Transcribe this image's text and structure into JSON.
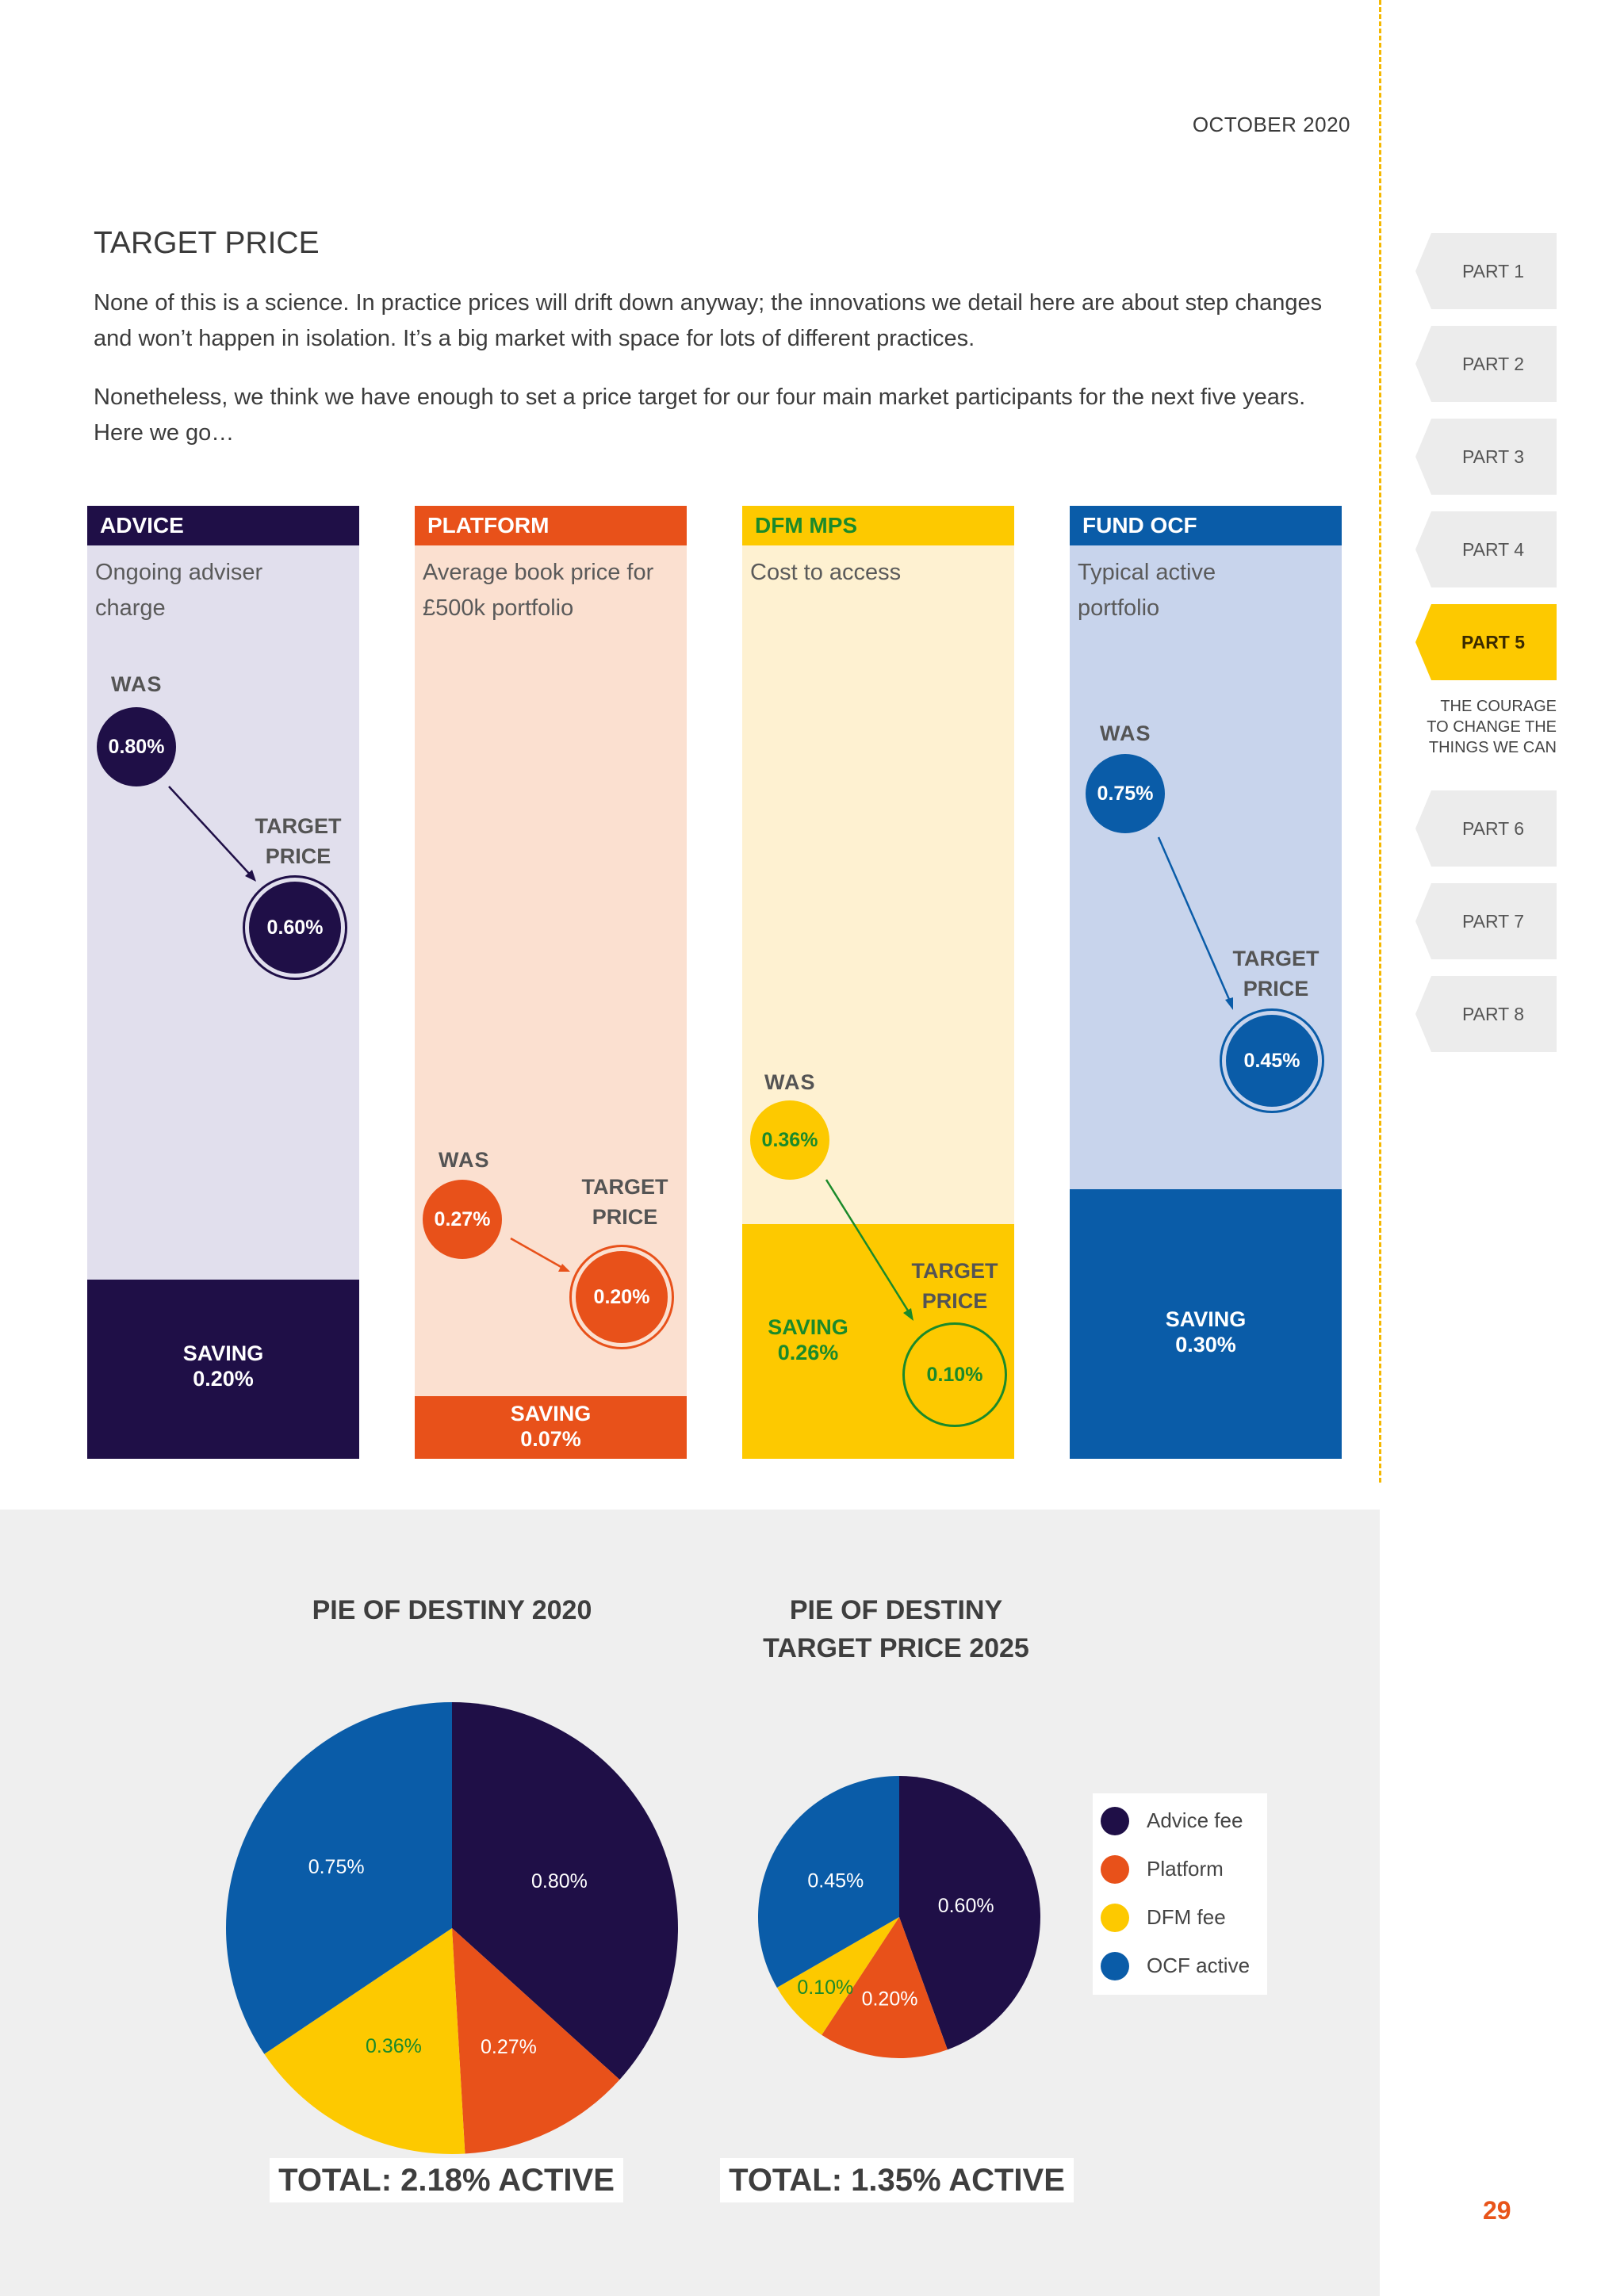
{
  "header": {
    "date": "OCTOBER 2020"
  },
  "title": "TARGET PRICE",
  "paragraphs": [
    "None of this is a science. In practice prices will drift down anyway; the innovations we detail here are about step changes and won’t happen in isolation. It’s a big market with space for lots of different practices.",
    "Nonetheless, we think we have enough to set a price target for our four main market participants for the next five years. Here we go…"
  ],
  "nav": {
    "items": [
      "PART 1",
      "PART 2",
      "PART 3",
      "PART 4",
      "PART 5",
      "PART 6",
      "PART 7",
      "PART 8"
    ],
    "active": "PART 5",
    "active_subtitle": "THE COURAGE\nTO CHANGE THE\nTHINGS WE CAN"
  },
  "columns": [
    {
      "heading": "ADVICE",
      "description": "Ongoing adviser charge",
      "was_label": "WAS",
      "was": "0.80%",
      "target_label": "TARGET PRICE",
      "target": "0.60%",
      "saving_label": "SAVING",
      "saving": "0.20%"
    },
    {
      "heading": "PLATFORM",
      "description": "Average book price for £500k portfolio",
      "was_label": "WAS",
      "was": "0.27%",
      "target_label": "TARGET PRICE",
      "target": "0.20%",
      "saving_label": "SAVING",
      "saving": "0.07%"
    },
    {
      "heading": "DFM MPS",
      "description": "Cost to access",
      "was_label": "WAS",
      "was": "0.36%",
      "target_label": "TARGET PRICE",
      "target": "0.10%",
      "saving_label": "SAVING",
      "saving": "0.26%"
    },
    {
      "heading": "FUND OCF",
      "description": "Typical active portfolio",
      "was_label": "WAS",
      "was": "0.75%",
      "target_label": "TARGET PRICE",
      "target": "0.45%",
      "saving_label": "SAVING",
      "saving": "0.30%"
    }
  ],
  "colors": {
    "advice": "#1f0f47",
    "platform": "#e8511a",
    "dfm": "#fdc900",
    "ocf": "#0a5ca8",
    "dfm_text": "#1a8a2a"
  },
  "chart_data": [
    {
      "type": "pie",
      "title": "PIE OF DESTINY 2020",
      "categories": [
        "Advice fee",
        "Platform",
        "DFM fee",
        "OCF active"
      ],
      "values": [
        0.8,
        0.27,
        0.36,
        0.75
      ],
      "labels": [
        "0.80%",
        "0.27%",
        "0.36%",
        "0.75%"
      ],
      "total_label": "TOTAL: 2.18% ACTIVE"
    },
    {
      "type": "pie",
      "title": "PIE OF DESTINY TARGET PRICE 2025",
      "categories": [
        "Advice fee",
        "Platform",
        "DFM fee",
        "OCF active"
      ],
      "values": [
        0.6,
        0.2,
        0.1,
        0.45
      ],
      "labels": [
        "0.60%",
        "0.20%",
        "0.10%",
        "0.45%"
      ],
      "total_label": "TOTAL: 1.35% ACTIVE"
    }
  ],
  "legend": [
    "Advice fee",
    "Platform",
    "DFM fee",
    "OCF active"
  ],
  "page_number": "29"
}
